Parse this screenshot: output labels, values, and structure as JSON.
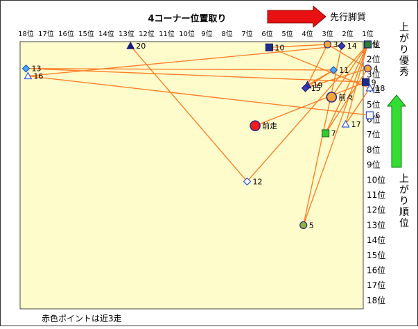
{
  "chart_data": {
    "type": "scatter",
    "title": "4コーナー位置取り",
    "x_arrow_label": "先行脚質",
    "y_arrow_top_label": "上がり優秀",
    "y_arrow_bottom_label": "上がり順位",
    "footnote": "赤色ポイントは近3走",
    "x_axis": {
      "label": "4コーナー位置取り",
      "range": [
        18,
        1
      ],
      "reversed": true,
      "ticks": [
        "18位",
        "17位",
        "16位",
        "15位",
        "14位",
        "13位",
        "12位",
        "11位",
        "10位",
        "9位",
        "8位",
        "7位",
        "6位",
        "5位",
        "4位",
        "3位",
        "2位",
        "1位"
      ]
    },
    "y_axis": {
      "label": "上がり順位",
      "range": [
        1,
        18
      ],
      "reversed": true,
      "ticks": [
        "1位",
        "2位",
        "3位",
        "4位",
        "5位",
        "6位",
        "7位",
        "8位",
        "9位",
        "10位",
        "11位",
        "12位",
        "13位",
        "14位",
        "15位",
        "16位",
        "17位",
        "18位"
      ]
    },
    "grid": false,
    "points": [
      {
        "label": "3",
        "x": 3.0,
        "y": 1.0,
        "shape": "circle",
        "fill": "#f4a53a",
        "stroke": "#2a2a8a"
      },
      {
        "label": "14",
        "x": 2.3,
        "y": 1.1,
        "shape": "diamond",
        "fill": "#3b3bb5",
        "stroke": "#1a1a70"
      },
      {
        "label": "8",
        "x": 1.0,
        "y": 1.0,
        "shape": "square",
        "fill": "#2e7d32",
        "stroke": "#1a1a70"
      },
      {
        "label": "20",
        "x": 12.8,
        "y": 1.1,
        "shape": "triangle",
        "fill": "#1a1a80",
        "stroke": "#1a1a80"
      },
      {
        "label": "10",
        "x": 5.9,
        "y": 1.2,
        "shape": "square",
        "fill": "#1a2e8a",
        "stroke": "#1a1a70"
      },
      {
        "label": "4",
        "x": 1.0,
        "y": 2.6,
        "shape": "circle",
        "fill": "#f4a53a",
        "stroke": "#2a2a8a"
      },
      {
        "label": "13",
        "x": 18.0,
        "y": 2.6,
        "shape": "diamond",
        "fill": "#4da6ff",
        "stroke": "#1f5fb0"
      },
      {
        "label": "11",
        "x": 2.7,
        "y": 2.7,
        "shape": "diamond",
        "fill": "#4da6ff",
        "stroke": "#1f5fb0"
      },
      {
        "label": "16",
        "x": 17.9,
        "y": 3.1,
        "shape": "triangle",
        "fill": "#ffffff",
        "stroke": "#3355dd"
      },
      {
        "label": "9",
        "x": 1.1,
        "y": 3.5,
        "shape": "square",
        "fill": "#1a2e8a",
        "stroke": "#1a1a70"
      },
      {
        "label": "19",
        "x": 4.0,
        "y": 3.7,
        "shape": "triangle",
        "fill": "#3b3bb5",
        "stroke": "#1a1a70"
      },
      {
        "label": "15",
        "x": 4.1,
        "y": 3.9,
        "shape": "diamond",
        "fill": "#3b3bb5",
        "stroke": "#1a1a70"
      },
      {
        "label": "18",
        "x": 0.9,
        "y": 3.9,
        "shape": "triangle",
        "fill": "#ffffff",
        "stroke": "#3355dd"
      },
      {
        "label": "前々",
        "x": 2.8,
        "y": 4.5,
        "shape": "circle",
        "fill": "#f4a53a",
        "stroke": "#2a2a8a",
        "size": "large"
      },
      {
        "label": "6",
        "x": 0.9,
        "y": 5.7,
        "shape": "square",
        "fill": "#ffffff",
        "stroke": "#3355dd"
      },
      {
        "label": "17",
        "x": 2.1,
        "y": 6.3,
        "shape": "triangle",
        "fill": "#ffffff",
        "stroke": "#3355dd"
      },
      {
        "label": "前走",
        "x": 6.6,
        "y": 6.4,
        "shape": "circle",
        "fill": "#ff1a1a",
        "stroke": "#2a2a8a",
        "size": "large"
      },
      {
        "label": "7",
        "x": 3.1,
        "y": 6.9,
        "shape": "square",
        "fill": "#33cc33",
        "stroke": "#1a6b1a"
      },
      {
        "label": "12",
        "x": 7.0,
        "y": 10.1,
        "shape": "diamond",
        "fill": "#ffffff",
        "stroke": "#3355dd"
      },
      {
        "label": "5",
        "x": 4.2,
        "y": 13.0,
        "shape": "circle",
        "fill": "#8db33b",
        "stroke": "#2a2a8a"
      }
    ],
    "connections": [
      [
        "10",
        "3"
      ],
      [
        "3",
        "4"
      ],
      [
        "4",
        "15"
      ],
      [
        "10",
        "18"
      ],
      [
        "11",
        "13"
      ],
      [
        "13",
        "9"
      ],
      [
        "14",
        "16"
      ],
      [
        "16",
        "6"
      ],
      [
        "20",
        "12"
      ],
      [
        "12",
        "8"
      ],
      [
        "19",
        "3"
      ],
      [
        "19",
        "11"
      ],
      [
        "15",
        "11"
      ],
      [
        "8",
        "5"
      ],
      [
        "5",
        "14"
      ],
      [
        "8",
        "17"
      ],
      [
        "9",
        "前走"
      ],
      [
        "前々",
        "8"
      ],
      [
        "7",
        "8"
      ],
      [
        "7",
        "4"
      ],
      [
        "17",
        "18"
      ]
    ],
    "line_color": "#ff7f27"
  }
}
